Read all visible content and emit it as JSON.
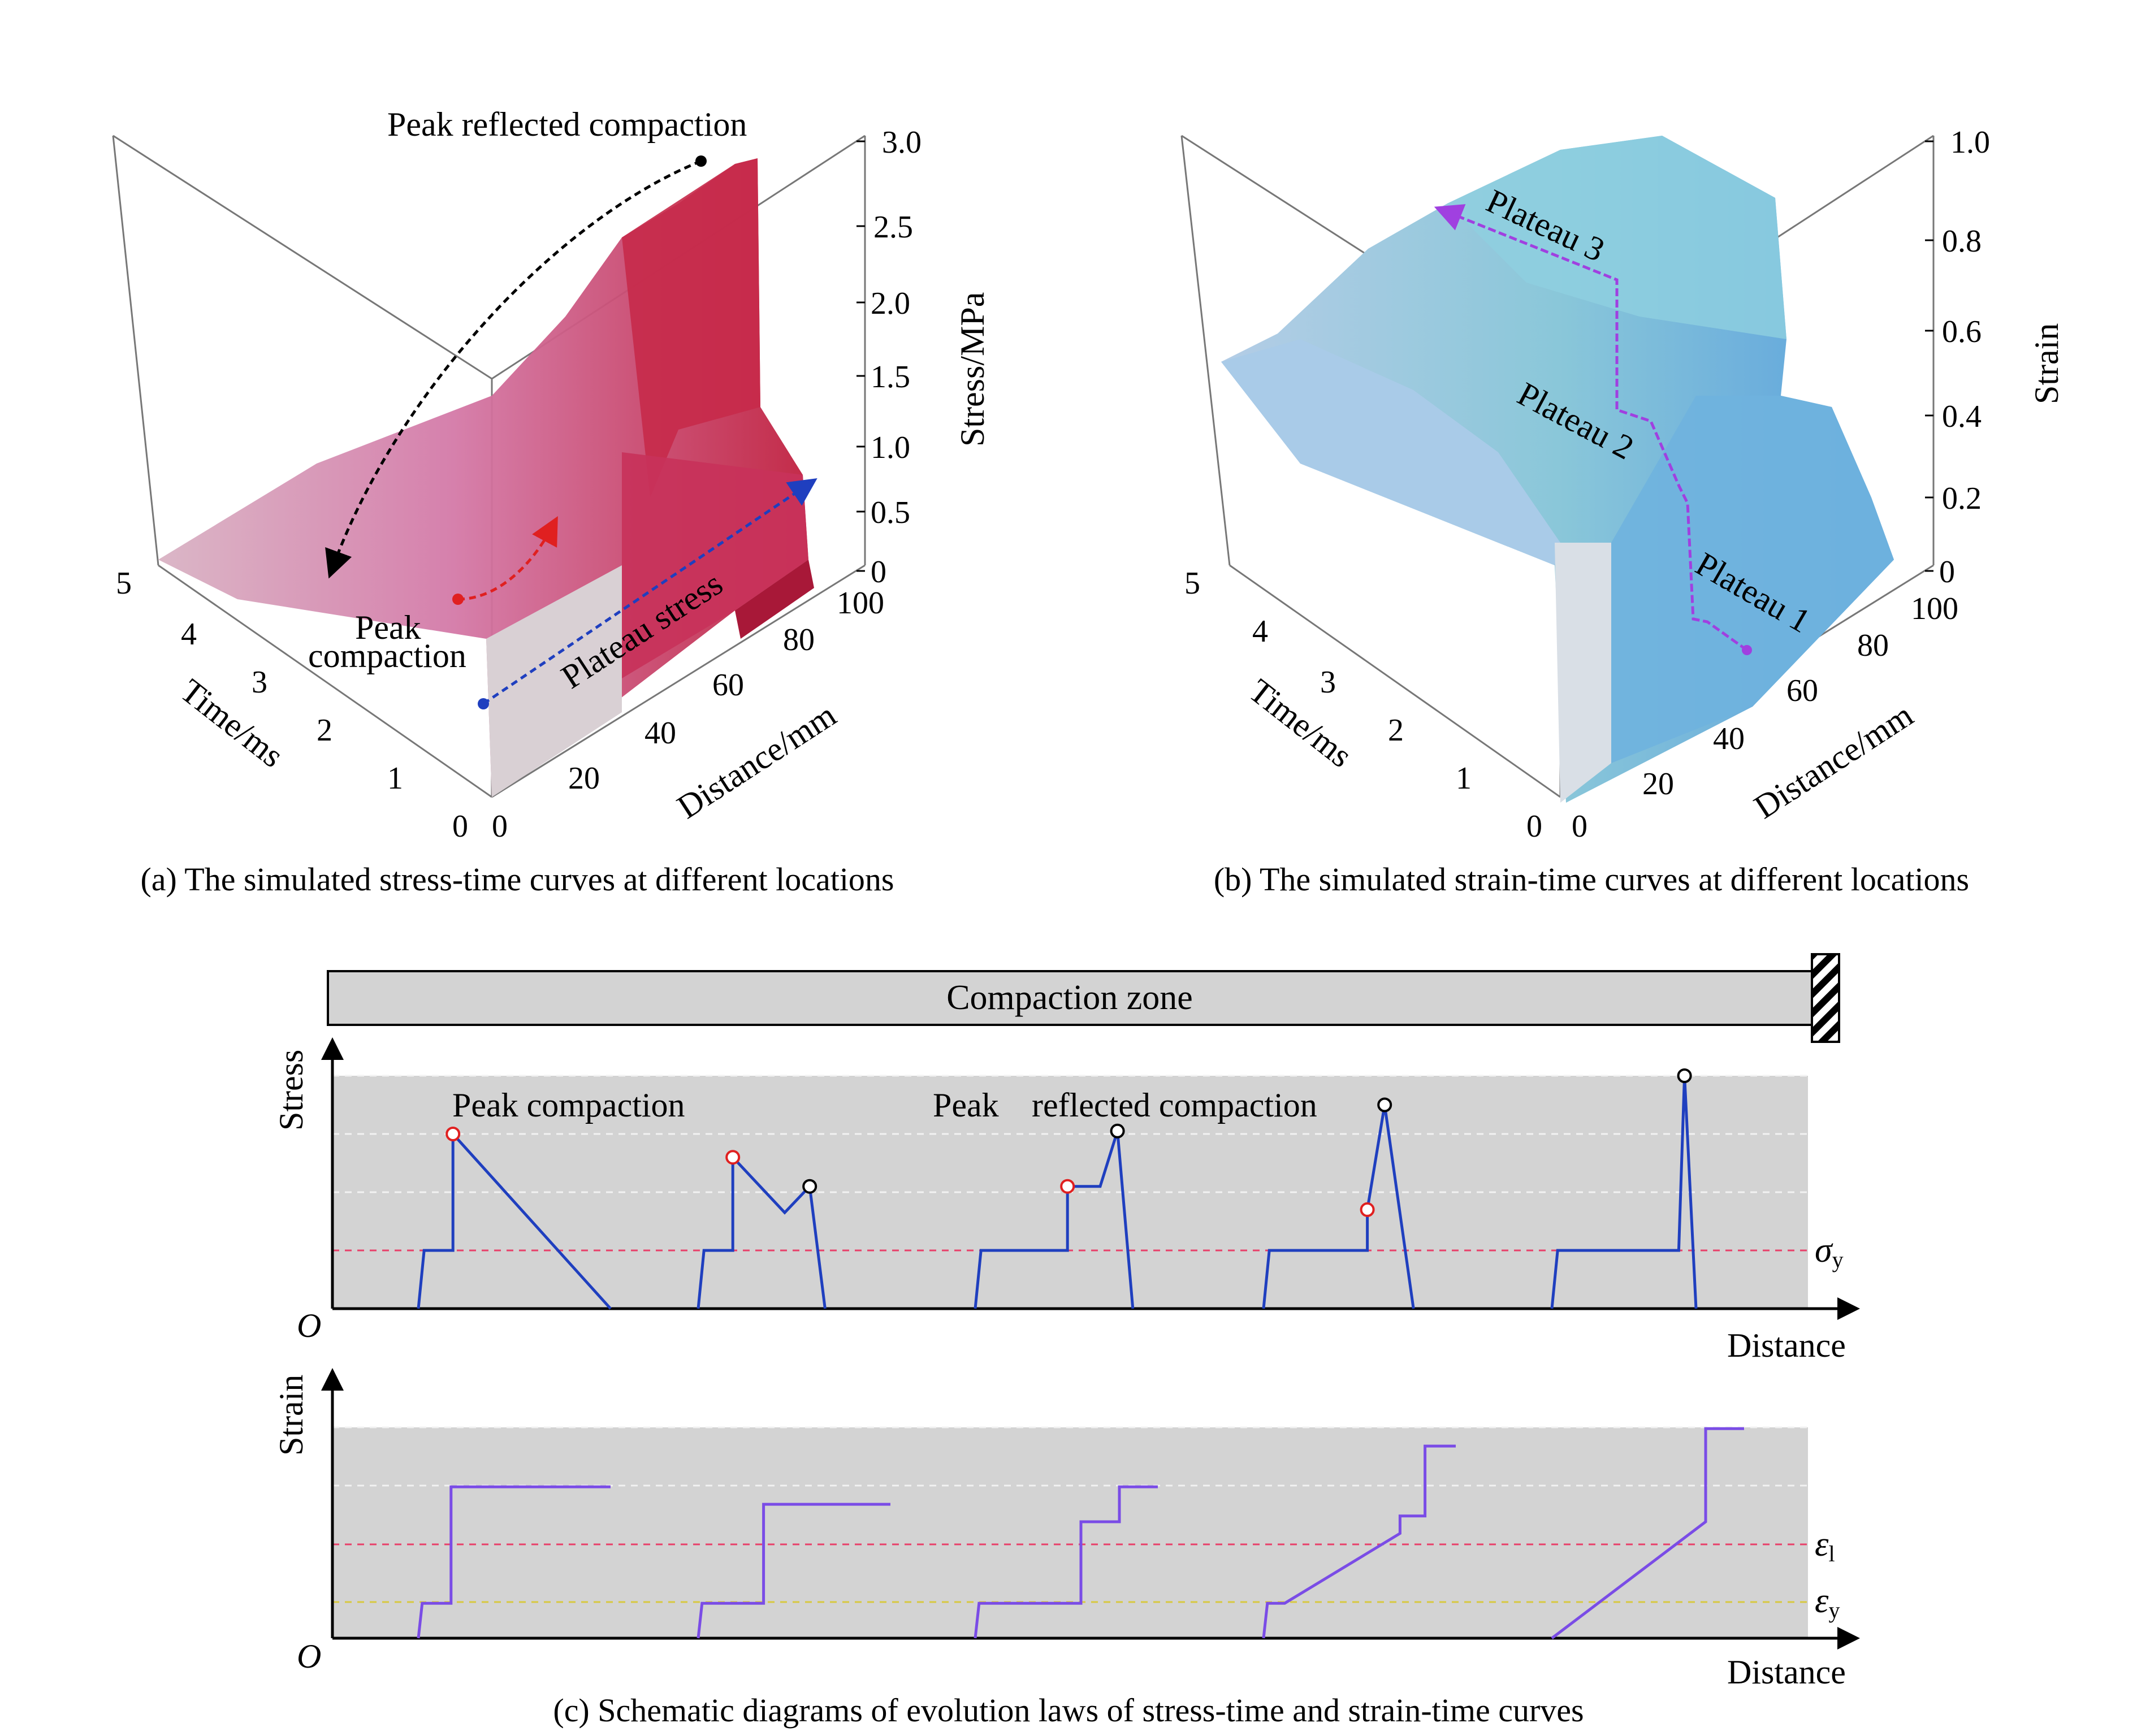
{
  "figure": {
    "caption_a": "(a) The simulated stress-time curves at different locations",
    "caption_b": "(b) The simulated strain-time curves at different locations",
    "caption_c": "(c) Schematic diagrams of evolution laws of stress-time and strain-time curves"
  },
  "colors": {
    "stress_surface": "#c8325a",
    "stress_surface_light": "#d98ab0",
    "strain_surface": "#6fb3de",
    "strain_surface_light": "#a9cbe8",
    "curve_blue": "#1f3fbf",
    "curve_purple": "#7a4ce6",
    "marker_red": "#e02020",
    "arrow_purple": "#a040e0",
    "zone_gray": "#d3d3d3"
  },
  "chart_data": [
    {
      "id": "a",
      "type": "surface",
      "zlabel": "Stress/MPa",
      "xlabel": "Distance/mm",
      "ylabel": "Time/ms",
      "z_ticks": [
        "3.0",
        "2.5",
        "2.0",
        "1.5",
        "1.0",
        "0.5",
        "0"
      ],
      "x_ticks": [
        "0",
        "20",
        "40",
        "60",
        "80",
        "100"
      ],
      "y_ticks": [
        "0",
        "1",
        "2",
        "3",
        "4",
        "5"
      ],
      "zlim": [
        0,
        3.0
      ],
      "xlim": [
        0,
        100
      ],
      "ylim": [
        0,
        5
      ],
      "annotations": {
        "peak_reflected": "Peak reflected compaction",
        "peak_compaction_1": "Peak",
        "peak_compaction_2": "compaction",
        "plateau_stress": "Plateau stress"
      },
      "plateau_stress_mpa": 0.8,
      "peak_reflected_mpa": 2.85
    },
    {
      "id": "b",
      "type": "surface",
      "zlabel": "Strain",
      "xlabel": "Distance/mm",
      "ylabel": "Time/ms",
      "z_ticks": [
        "1.0",
        "0.8",
        "0.6",
        "0.4",
        "0.2",
        "0"
      ],
      "x_ticks": [
        "0",
        "20",
        "40",
        "60",
        "80",
        "100"
      ],
      "y_ticks": [
        "0",
        "1",
        "2",
        "3",
        "4",
        "5"
      ],
      "zlim": [
        0,
        1.0
      ],
      "xlim": [
        0,
        100
      ],
      "ylim": [
        0,
        5
      ],
      "annotations": {
        "plateau1": "Plateau 1",
        "plateau2": "Plateau 2",
        "plateau3": "Plateau 3"
      },
      "plateau_levels": [
        0.1,
        0.4,
        0.88
      ]
    },
    {
      "id": "c",
      "type": "line",
      "zone_label": "Compaction zone",
      "stress_label": "Stress",
      "strain_label": "Strain",
      "distance_label": "Distance",
      "origin_label": "O",
      "sigma": "σ",
      "sigma_sub": "y",
      "eps": "ε",
      "eps_l_sub": "l",
      "eps_y_sub": "y",
      "peak_compaction": "Peak compaction",
      "peak_reflected_1": "Peak",
      "peak_reflected_2": "reflected compaction",
      "sigma_y_level": 1,
      "stress_curves": [
        [
          [
            0,
            0
          ],
          [
            0.03,
            1
          ],
          [
            0.18,
            1
          ],
          [
            0.18,
            3
          ],
          [
            1.0,
            0
          ]
        ],
        [
          [
            0,
            0
          ],
          [
            0.03,
            1
          ],
          [
            0.18,
            1
          ],
          [
            0.18,
            2.6
          ],
          [
            0.45,
            1.65
          ],
          [
            0.58,
            2.1
          ],
          [
            0.66,
            0
          ]
        ],
        [
          [
            0,
            0
          ],
          [
            0.03,
            1
          ],
          [
            0.48,
            1
          ],
          [
            0.48,
            2.1
          ],
          [
            0.65,
            2.1
          ],
          [
            0.74,
            3.05
          ],
          [
            0.82,
            0
          ]
        ],
        [
          [
            0,
            0
          ],
          [
            0.03,
            1
          ],
          [
            0.54,
            1
          ],
          [
            0.54,
            1.7
          ],
          [
            0.63,
            3.5
          ],
          [
            0.78,
            0
          ]
        ],
        [
          [
            0,
            0
          ],
          [
            0.03,
            1
          ],
          [
            0.66,
            1
          ],
          [
            0.69,
            4.0
          ],
          [
            0.75,
            0
          ]
        ]
      ],
      "stress_red_peaks": [
        [
          0.18,
          3
        ],
        [
          0.18,
          2.6
        ],
        [
          0.48,
          2.1
        ],
        [
          0.54,
          1.7
        ]
      ],
      "stress_black_peaks": [
        [
          0.58,
          2.1
        ],
        [
          0.74,
          3.05
        ],
        [
          0.63,
          3.5
        ],
        [
          0.69,
          4.0
        ]
      ],
      "strain_levels": [
        "ε_y",
        "ε_l"
      ],
      "strain_curves": [
        [
          [
            0,
            0
          ],
          [
            0.02,
            0.6
          ],
          [
            0.17,
            0.6
          ],
          [
            0.17,
            2.6
          ],
          [
            1.0,
            2.6
          ]
        ],
        [
          [
            0,
            0
          ],
          [
            0.02,
            0.6
          ],
          [
            0.34,
            0.6
          ],
          [
            0.34,
            2.3
          ],
          [
            1.0,
            2.3
          ]
        ],
        [
          [
            0,
            0
          ],
          [
            0.02,
            0.6
          ],
          [
            0.55,
            0.6
          ],
          [
            0.55,
            2.0
          ],
          [
            0.75,
            2.0
          ],
          [
            0.75,
            2.6
          ],
          [
            0.95,
            2.6
          ]
        ],
        [
          [
            0,
            0
          ],
          [
            0.02,
            0.6
          ],
          [
            0.11,
            0.6
          ],
          [
            0.71,
            1.8
          ],
          [
            0.71,
            2.1
          ],
          [
            0.84,
            2.1
          ],
          [
            0.84,
            3.3
          ],
          [
            1.0,
            3.3
          ]
        ],
        [
          [
            0,
            0
          ],
          [
            0.8,
            2.0
          ],
          [
            0.8,
            3.6
          ],
          [
            1.0,
            3.6
          ]
        ]
      ]
    }
  ]
}
